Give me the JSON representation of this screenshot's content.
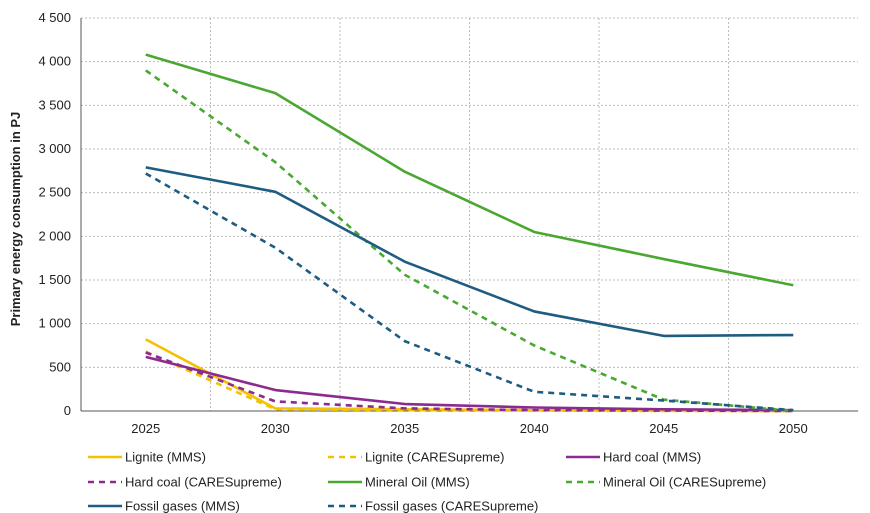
{
  "chart_data": {
    "type": "line",
    "ylabel": "Primary energy consumption in PJ",
    "x": [
      "2025",
      "2030",
      "2035",
      "2040",
      "2045",
      "2050"
    ],
    "ylim": [
      0,
      4500
    ],
    "yticks": [
      0,
      500,
      1000,
      1500,
      2000,
      2500,
      3000,
      3500,
      4000,
      4500
    ],
    "ytick_labels": [
      "0",
      "500",
      "1 000",
      "1 500",
      "2 000",
      "2 500",
      "3 000",
      "3 500",
      "4 000",
      "4 500"
    ],
    "grid": true,
    "legend_position": "bottom",
    "series": [
      {
        "name": "Lignite (MMS)",
        "color": "#f2c200",
        "dash": "solid",
        "values": [
          820,
          30,
          20,
          10,
          5,
          0
        ]
      },
      {
        "name": "Lignite (CARESupreme)",
        "color": "#f2c200",
        "dash": "dashed",
        "values": [
          680,
          20,
          10,
          5,
          0,
          0
        ]
      },
      {
        "name": "Hard coal (MMS)",
        "color": "#8b2a8f",
        "dash": "solid",
        "values": [
          620,
          240,
          80,
          40,
          20,
          10
        ]
      },
      {
        "name": "Hard coal (CARESupreme)",
        "color": "#8b2a8f",
        "dash": "dashed",
        "values": [
          670,
          110,
          30,
          10,
          5,
          0
        ]
      },
      {
        "name": "Mineral Oil (MMS)",
        "color": "#4aa832",
        "dash": "solid",
        "values": [
          4080,
          3640,
          2740,
          2050,
          1740,
          1440
        ]
      },
      {
        "name": "Mineral Oil (CARESupreme)",
        "color": "#4aa832",
        "dash": "dashed",
        "values": [
          3900,
          2850,
          1560,
          750,
          130,
          0
        ]
      },
      {
        "name": "Fossil gases (MMS)",
        "color": "#1f5c82",
        "dash": "solid",
        "values": [
          2790,
          2510,
          1710,
          1140,
          860,
          870
        ]
      },
      {
        "name": "Fossil gases (CARESupreme)",
        "color": "#1f5c82",
        "dash": "dashed",
        "values": [
          2720,
          1870,
          800,
          220,
          120,
          10
        ]
      }
    ]
  }
}
